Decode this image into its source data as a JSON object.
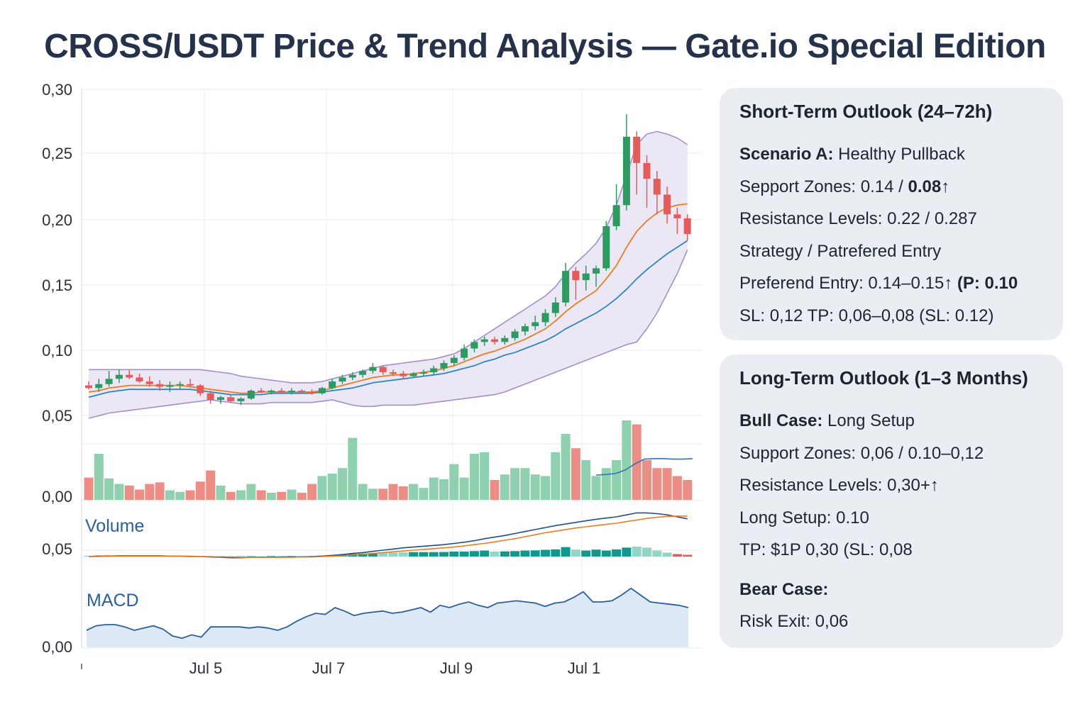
{
  "title": "CROSS/USDT Price & Trend Analysis — Gate.io Special Edition",
  "chart_data": {
    "type": "candlestick",
    "y_axis_labels": [
      "0,30",
      "0,25",
      "0,20",
      "0,15",
      "0,10",
      "0,05",
      "0,00",
      "0,05",
      "0,00"
    ],
    "x_axis_labels": [
      "Jul 5",
      "Jul 7",
      "Jul 9",
      "Jul 1"
    ],
    "pane_labels": {
      "volume": "Volume",
      "macd": "MACD"
    },
    "ylim": [
      0.0,
      0.3
    ],
    "grid": true,
    "candles": [
      {
        "o": 0.075,
        "h": 0.078,
        "l": 0.072,
        "c": 0.073
      },
      {
        "o": 0.073,
        "h": 0.08,
        "l": 0.07,
        "c": 0.076
      },
      {
        "o": 0.076,
        "h": 0.086,
        "l": 0.074,
        "c": 0.08
      },
      {
        "o": 0.08,
        "h": 0.087,
        "l": 0.077,
        "c": 0.083
      },
      {
        "o": 0.083,
        "h": 0.087,
        "l": 0.08,
        "c": 0.081
      },
      {
        "o": 0.081,
        "h": 0.084,
        "l": 0.077,
        "c": 0.078
      },
      {
        "o": 0.078,
        "h": 0.082,
        "l": 0.074,
        "c": 0.076
      },
      {
        "o": 0.076,
        "h": 0.079,
        "l": 0.071,
        "c": 0.074
      },
      {
        "o": 0.074,
        "h": 0.078,
        "l": 0.07,
        "c": 0.075
      },
      {
        "o": 0.075,
        "h": 0.078,
        "l": 0.072,
        "c": 0.076
      },
      {
        "o": 0.076,
        "h": 0.08,
        "l": 0.074,
        "c": 0.075
      },
      {
        "o": 0.075,
        "h": 0.076,
        "l": 0.067,
        "c": 0.069
      },
      {
        "o": 0.069,
        "h": 0.071,
        "l": 0.061,
        "c": 0.064
      },
      {
        "o": 0.064,
        "h": 0.067,
        "l": 0.061,
        "c": 0.066
      },
      {
        "o": 0.066,
        "h": 0.068,
        "l": 0.062,
        "c": 0.063
      },
      {
        "o": 0.063,
        "h": 0.066,
        "l": 0.06,
        "c": 0.065
      },
      {
        "o": 0.065,
        "h": 0.072,
        "l": 0.064,
        "c": 0.071
      },
      {
        "o": 0.071,
        "h": 0.073,
        "l": 0.069,
        "c": 0.07
      },
      {
        "o": 0.07,
        "h": 0.072,
        "l": 0.068,
        "c": 0.071
      },
      {
        "o": 0.071,
        "h": 0.073,
        "l": 0.069,
        "c": 0.07
      },
      {
        "o": 0.07,
        "h": 0.073,
        "l": 0.068,
        "c": 0.071
      },
      {
        "o": 0.071,
        "h": 0.072,
        "l": 0.069,
        "c": 0.07
      },
      {
        "o": 0.07,
        "h": 0.072,
        "l": 0.068,
        "c": 0.069
      },
      {
        "o": 0.069,
        "h": 0.074,
        "l": 0.068,
        "c": 0.073
      },
      {
        "o": 0.073,
        "h": 0.08,
        "l": 0.072,
        "c": 0.078
      },
      {
        "o": 0.078,
        "h": 0.083,
        "l": 0.076,
        "c": 0.081
      },
      {
        "o": 0.081,
        "h": 0.085,
        "l": 0.079,
        "c": 0.083
      },
      {
        "o": 0.083,
        "h": 0.087,
        "l": 0.081,
        "c": 0.086
      },
      {
        "o": 0.086,
        "h": 0.092,
        "l": 0.084,
        "c": 0.089
      },
      {
        "o": 0.089,
        "h": 0.09,
        "l": 0.083,
        "c": 0.085
      },
      {
        "o": 0.085,
        "h": 0.087,
        "l": 0.082,
        "c": 0.084
      },
      {
        "o": 0.084,
        "h": 0.086,
        "l": 0.08,
        "c": 0.082
      },
      {
        "o": 0.082,
        "h": 0.085,
        "l": 0.081,
        "c": 0.084
      },
      {
        "o": 0.084,
        "h": 0.087,
        "l": 0.082,
        "c": 0.085
      },
      {
        "o": 0.085,
        "h": 0.09,
        "l": 0.083,
        "c": 0.088
      },
      {
        "o": 0.088,
        "h": 0.094,
        "l": 0.086,
        "c": 0.092
      },
      {
        "o": 0.092,
        "h": 0.098,
        "l": 0.09,
        "c": 0.096
      },
      {
        "o": 0.096,
        "h": 0.106,
        "l": 0.094,
        "c": 0.103
      },
      {
        "o": 0.103,
        "h": 0.11,
        "l": 0.1,
        "c": 0.108
      },
      {
        "o": 0.108,
        "h": 0.112,
        "l": 0.105,
        "c": 0.11
      },
      {
        "o": 0.11,
        "h": 0.112,
        "l": 0.106,
        "c": 0.108
      },
      {
        "o": 0.108,
        "h": 0.113,
        "l": 0.106,
        "c": 0.111
      },
      {
        "o": 0.111,
        "h": 0.118,
        "l": 0.109,
        "c": 0.116
      },
      {
        "o": 0.116,
        "h": 0.122,
        "l": 0.113,
        "c": 0.12
      },
      {
        "o": 0.12,
        "h": 0.128,
        "l": 0.117,
        "c": 0.123
      },
      {
        "o": 0.123,
        "h": 0.133,
        "l": 0.12,
        "c": 0.13
      },
      {
        "o": 0.13,
        "h": 0.142,
        "l": 0.127,
        "c": 0.138
      },
      {
        "o": 0.138,
        "h": 0.168,
        "l": 0.135,
        "c": 0.162
      },
      {
        "o": 0.162,
        "h": 0.165,
        "l": 0.14,
        "c": 0.155
      },
      {
        "o": 0.155,
        "h": 0.166,
        "l": 0.147,
        "c": 0.16
      },
      {
        "o": 0.16,
        "h": 0.166,
        "l": 0.15,
        "c": 0.164
      },
      {
        "o": 0.164,
        "h": 0.2,
        "l": 0.162,
        "c": 0.196
      },
      {
        "o": 0.196,
        "h": 0.228,
        "l": 0.193,
        "c": 0.212
      },
      {
        "o": 0.212,
        "h": 0.281,
        "l": 0.208,
        "c": 0.264
      },
      {
        "o": 0.264,
        "h": 0.268,
        "l": 0.22,
        "c": 0.244
      },
      {
        "o": 0.244,
        "h": 0.25,
        "l": 0.21,
        "c": 0.232
      },
      {
        "o": 0.232,
        "h": 0.238,
        "l": 0.205,
        "c": 0.22
      },
      {
        "o": 0.22,
        "h": 0.226,
        "l": 0.198,
        "c": 0.205
      },
      {
        "o": 0.205,
        "h": 0.21,
        "l": 0.19,
        "c": 0.202
      },
      {
        "o": 0.202,
        "h": 0.205,
        "l": 0.185,
        "c": 0.19
      }
    ],
    "moving_averages": [
      {
        "color": "#2e86c1",
        "values": [
          0.066,
          0.068,
          0.07,
          0.071,
          0.072,
          0.072,
          0.072,
          0.072,
          0.072,
          0.072,
          0.072,
          0.071,
          0.07,
          0.069,
          0.068,
          0.068,
          0.068,
          0.068,
          0.069,
          0.069,
          0.069,
          0.069,
          0.069,
          0.07,
          0.071,
          0.072,
          0.073,
          0.075,
          0.077,
          0.078,
          0.079,
          0.08,
          0.081,
          0.082,
          0.083,
          0.084,
          0.086,
          0.088,
          0.09,
          0.093,
          0.095,
          0.098,
          0.1,
          0.103,
          0.106,
          0.109,
          0.113,
          0.118,
          0.122,
          0.126,
          0.13,
          0.135,
          0.141,
          0.148,
          0.156,
          0.163,
          0.169,
          0.175,
          0.18,
          0.185
        ]
      },
      {
        "color": "#e67e22",
        "values": [
          0.07,
          0.071,
          0.073,
          0.074,
          0.075,
          0.075,
          0.075,
          0.075,
          0.075,
          0.075,
          0.074,
          0.073,
          0.072,
          0.071,
          0.07,
          0.069,
          0.069,
          0.07,
          0.07,
          0.07,
          0.07,
          0.07,
          0.07,
          0.071,
          0.073,
          0.075,
          0.077,
          0.079,
          0.081,
          0.082,
          0.083,
          0.083,
          0.084,
          0.085,
          0.086,
          0.088,
          0.09,
          0.093,
          0.096,
          0.099,
          0.101,
          0.104,
          0.107,
          0.11,
          0.114,
          0.118,
          0.124,
          0.131,
          0.137,
          0.142,
          0.147,
          0.156,
          0.166,
          0.18,
          0.192,
          0.2,
          0.206,
          0.21,
          0.212,
          0.213
        ]
      }
    ],
    "bands": {
      "upper": [
        0.087,
        0.087,
        0.087,
        0.087,
        0.087,
        0.087,
        0.087,
        0.087,
        0.087,
        0.087,
        0.087,
        0.087,
        0.086,
        0.085,
        0.084,
        0.082,
        0.081,
        0.08,
        0.079,
        0.078,
        0.077,
        0.077,
        0.077,
        0.078,
        0.08,
        0.082,
        0.084,
        0.086,
        0.088,
        0.09,
        0.091,
        0.092,
        0.093,
        0.094,
        0.095,
        0.097,
        0.099,
        0.103,
        0.108,
        0.113,
        0.118,
        0.123,
        0.128,
        0.133,
        0.138,
        0.143,
        0.15,
        0.16,
        0.168,
        0.175,
        0.183,
        0.195,
        0.212,
        0.235,
        0.258,
        0.266,
        0.268,
        0.266,
        0.263,
        0.258
      ],
      "lower": [
        0.05,
        0.052,
        0.054,
        0.055,
        0.056,
        0.057,
        0.058,
        0.059,
        0.06,
        0.061,
        0.062,
        0.063,
        0.064,
        0.063,
        0.062,
        0.061,
        0.061,
        0.061,
        0.062,
        0.062,
        0.062,
        0.062,
        0.062,
        0.063,
        0.064,
        0.062,
        0.06,
        0.059,
        0.059,
        0.06,
        0.06,
        0.06,
        0.06,
        0.061,
        0.062,
        0.063,
        0.064,
        0.065,
        0.066,
        0.067,
        0.068,
        0.07,
        0.073,
        0.076,
        0.079,
        0.082,
        0.085,
        0.088,
        0.091,
        0.094,
        0.097,
        0.1,
        0.103,
        0.106,
        0.108,
        0.118,
        0.13,
        0.145,
        0.16,
        0.178
      ]
    },
    "volume": [
      0.28,
      0.58,
      0.27,
      0.2,
      0.18,
      0.13,
      0.2,
      0.22,
      0.12,
      0.1,
      0.12,
      0.23,
      0.37,
      0.18,
      0.1,
      0.12,
      0.2,
      0.12,
      0.09,
      0.1,
      0.13,
      0.09,
      0.2,
      0.3,
      0.33,
      0.4,
      0.78,
      0.2,
      0.14,
      0.14,
      0.2,
      0.17,
      0.2,
      0.15,
      0.28,
      0.26,
      0.45,
      0.28,
      0.58,
      0.6,
      0.25,
      0.32,
      0.4,
      0.4,
      0.32,
      0.3,
      0.6,
      0.83,
      0.65,
      0.5,
      0.3,
      0.4,
      0.5,
      1.2,
      0.95,
      0.5,
      0.4,
      0.4,
      0.3,
      0.25
    ],
    "volume_ma": [
      0.5,
      0.51,
      0.53,
      0.6,
      0.72,
      0.82,
      0.83,
      0.83,
      0.82,
      0.82,
      0.83
    ],
    "macd_hist": [
      0.08,
      0.1,
      0.12,
      0.12,
      0.1,
      0.08,
      0.06,
      0.06,
      0.05,
      0.05,
      0.05,
      0.04,
      0.04,
      0.04,
      0.03,
      0.03,
      0.04,
      0.04,
      0.05,
      0.05,
      0.05,
      0.06,
      0.08,
      0.1,
      0.15,
      0.2,
      0.28,
      0.3,
      0.35,
      0.38,
      0.4,
      0.42,
      0.45,
      0.45,
      0.45,
      0.46,
      0.5,
      0.5,
      0.55,
      0.6,
      0.5,
      0.52,
      0.55,
      0.6,
      0.62,
      0.68,
      0.72,
      0.95,
      0.7,
      0.6,
      0.7,
      0.6,
      0.72,
      0.9,
      1.0,
      0.9,
      0.6,
      0.4,
      0.25,
      0.18
    ],
    "macd_lines": [
      {
        "color": "#1f4f8a",
        "values": [
          0.0,
          0.01,
          0.01,
          0.02,
          0.02,
          0.02,
          0.02,
          0.02,
          0.01,
          0.01,
          0.0,
          0.0,
          -0.01,
          -0.02,
          -0.03,
          -0.03,
          -0.02,
          -0.02,
          -0.02,
          -0.01,
          -0.01,
          -0.01,
          0.0,
          0.01,
          0.03,
          0.05,
          0.08,
          0.1,
          0.13,
          0.16,
          0.19,
          0.22,
          0.24,
          0.26,
          0.28,
          0.3,
          0.33,
          0.36,
          0.4,
          0.45,
          0.49,
          0.53,
          0.58,
          0.63,
          0.68,
          0.73,
          0.78,
          0.82,
          0.86,
          0.9,
          0.94,
          0.97,
          1.0,
          1.05,
          1.1,
          1.1,
          1.08,
          1.05,
          1.0,
          0.95
        ]
      },
      {
        "color": "#e67e22",
        "values": [
          0.0,
          0.0,
          0.01,
          0.01,
          0.01,
          0.01,
          0.01,
          0.01,
          0.01,
          0.01,
          0.01,
          0.0,
          0.0,
          -0.01,
          -0.01,
          -0.02,
          -0.02,
          -0.02,
          -0.02,
          -0.02,
          -0.02,
          -0.01,
          -0.01,
          0.0,
          0.01,
          0.02,
          0.04,
          0.06,
          0.08,
          0.1,
          0.12,
          0.14,
          0.16,
          0.18,
          0.2,
          0.22,
          0.24,
          0.27,
          0.3,
          0.33,
          0.37,
          0.41,
          0.45,
          0.5,
          0.55,
          0.6,
          0.64,
          0.68,
          0.72,
          0.75,
          0.78,
          0.81,
          0.84,
          0.88,
          0.92,
          0.96,
          0.99,
          1.01,
          1.02,
          1.02
        ]
      }
    ],
    "macd_values": [
      0.3,
      0.38,
      0.4,
      0.4,
      0.36,
      0.3,
      0.34,
      0.38,
      0.32,
      0.2,
      0.16,
      0.22,
      0.18,
      0.36,
      0.36,
      0.36,
      0.36,
      0.34,
      0.36,
      0.34,
      0.3,
      0.36,
      0.46,
      0.54,
      0.6,
      0.58,
      0.7,
      0.64,
      0.56,
      0.6,
      0.62,
      0.64,
      0.6,
      0.62,
      0.66,
      0.7,
      0.62,
      0.74,
      0.7,
      0.76,
      0.8,
      0.74,
      0.7,
      0.78,
      0.8,
      0.82,
      0.8,
      0.78,
      0.72,
      0.78,
      0.8,
      0.88,
      0.98,
      0.8,
      0.8,
      0.82,
      0.92,
      1.04,
      0.92,
      0.8,
      0.78,
      0.76,
      0.74,
      0.7
    ],
    "colors": {
      "up": "#2e9a62",
      "down": "#e35b5b",
      "vol_up": "#8fd0ae",
      "vol_down": "#ec8e86",
      "band": "#e8e3f3"
    }
  },
  "short_term": {
    "title": "Short-Term Outlook (24–72h)",
    "scenario_label": "Scenario A:",
    "scenario_value": " Healthy Pullback",
    "support": "Sepport Zones: 0.14 / ",
    "support_bold": "0.08↑",
    "resistance": "Resistance Levels: 0.22 / 0.287",
    "strategy": "Strategy / Patrefered Entry",
    "entry": "Preferend Entry: 0.14–0.15↑ ",
    "entry_bold": "(P: 0.10",
    "sl_tp": "SL: 0,12  TP: 0,06–0,08 (SL: 0.12)"
  },
  "long_term": {
    "title": "Long-Term Outlook (1–3 Months)",
    "bull_label": "Bull Case:",
    "bull_value": " Long Setup",
    "support": "Support Zones: 0,06 / 0.10–0,12",
    "resistance": "Resistance Levels: 0,30+↑",
    "long_setup": "Long Setup: 0.10",
    "tp": "TP: $1P 0,30 (SL: 0,08",
    "bear_label": "Bear Case:",
    "risk_exit": "Risk Exit: 0,06"
  }
}
